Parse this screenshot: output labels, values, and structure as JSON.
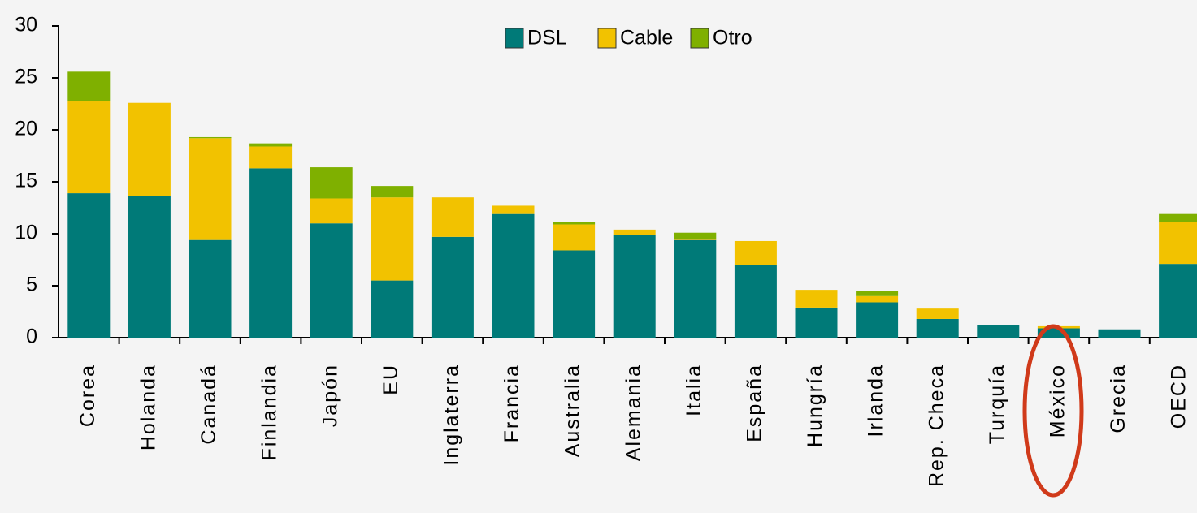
{
  "chart_data": {
    "type": "stacked_bar",
    "categories": [
      "Corea",
      "Holanda",
      "Canadá",
      "Finlandia",
      "Japón",
      "EU",
      "Inglaterra",
      "Francia",
      "Australia",
      "Alemania",
      "Italia",
      "España",
      "Hungría",
      "Irlanda",
      "Rep. Checa",
      "Turquía",
      "México",
      "Grecia",
      "OECD"
    ],
    "series": [
      {
        "name": "DSL",
        "color": "#007a78",
        "values": [
          13.9,
          13.6,
          9.4,
          16.3,
          11.0,
          5.5,
          9.7,
          11.9,
          8.4,
          9.9,
          9.4,
          7.0,
          2.9,
          3.4,
          1.8,
          1.2,
          0.9,
          0.8,
          7.1
        ]
      },
      {
        "name": "Cable",
        "color": "#f2c200",
        "values": [
          8.9,
          9.0,
          9.8,
          2.1,
          2.4,
          8.0,
          3.8,
          0.8,
          2.5,
          0.5,
          0.1,
          2.3,
          1.7,
          0.6,
          1.0,
          0,
          0.2,
          0,
          4.0
        ]
      },
      {
        "name": "Otro",
        "color": "#7fb000",
        "values": [
          2.8,
          0,
          0.1,
          0.3,
          3.0,
          1.1,
          0,
          0,
          0.2,
          0,
          0.6,
          0,
          0,
          0.5,
          0,
          0,
          0,
          0,
          0.8
        ]
      }
    ],
    "ylim": [
      0,
      30
    ],
    "yticks": [
      0,
      5,
      10,
      15,
      20,
      25,
      30
    ],
    "legend": "top"
  }
}
